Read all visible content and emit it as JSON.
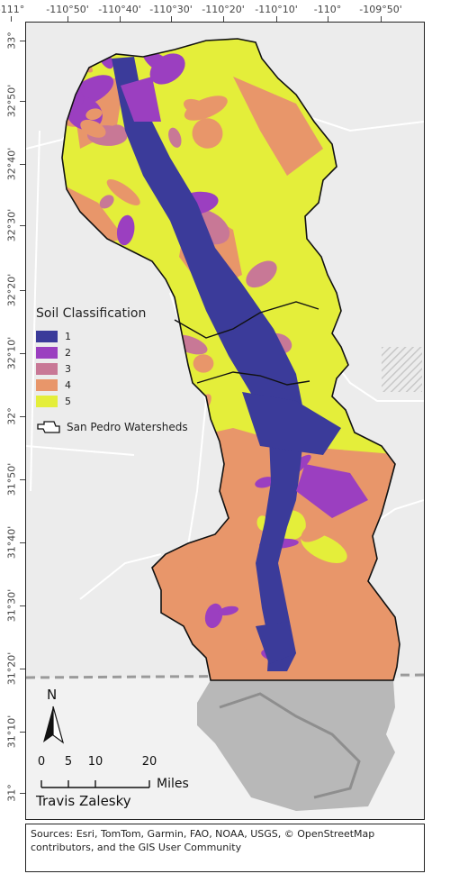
{
  "lon_ticks": [
    "-111°",
    "-110°50'",
    "-110°40'",
    "-110°30'",
    "-110°20'",
    "-110°10'",
    "-110°",
    "-109°50'"
  ],
  "lat_ticks": [
    "33°",
    "32°50'",
    "32°40'",
    "32°30'",
    "32°20'",
    "32°10'",
    "32°",
    "31°50'",
    "31°40'",
    "31°30'",
    "31°20'",
    "31°10'",
    "31°"
  ],
  "legend": {
    "title": "Soil Classification",
    "classes": [
      {
        "label": "1",
        "color": "#3b3b9a"
      },
      {
        "label": "2",
        "color": "#9b3fc0"
      },
      {
        "label": "3",
        "color": "#c87896"
      },
      {
        "label": "4",
        "color": "#e8966a"
      },
      {
        "label": "5",
        "color": "#e4ee3a"
      }
    ],
    "watershed_label": "San Pedro Watersheds"
  },
  "north_arrow": "N",
  "scale": {
    "labels": [
      "0",
      "5",
      "10",
      "20"
    ],
    "units": "Miles"
  },
  "author": "Travis Zalesky",
  "credits": "Sources: Esri, TomTom, Garmin, FAO, NOAA, USGS, © OpenStreetMap contributors, and the GIS User Community",
  "colors": {
    "hillshade": "#b8b8b8",
    "basemap": "#ececec",
    "roads": "#ffffff"
  }
}
